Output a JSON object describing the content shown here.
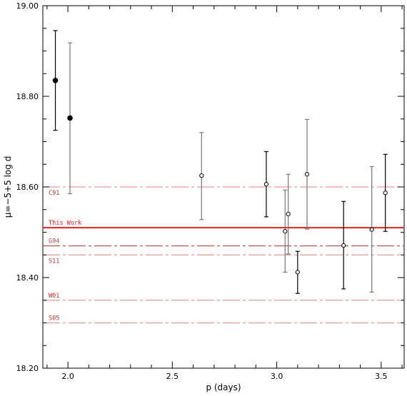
{
  "chart_data": {
    "type": "scatter",
    "xlabel": "p (days)",
    "ylabel": "μ=−5+5 log d",
    "xlim": [
      1.88,
      3.61
    ],
    "ylim": [
      18.2,
      19.0
    ],
    "x_ticks": [
      2.0,
      2.5,
      3.0,
      3.5
    ],
    "x_tick_labels": [
      "2.0",
      "2.5",
      "3.0",
      "3.5"
    ],
    "y_ticks": [
      18.2,
      18.4,
      18.6,
      18.8,
      19.0
    ],
    "y_tick_labels": [
      "18.20",
      "18.40",
      "18.60",
      "18.80",
      "19.00"
    ],
    "grid": false,
    "points": [
      {
        "x": 1.94,
        "y": 18.835,
        "yerr_low": 18.725,
        "yerr_high": 18.945,
        "filled": true,
        "bar_color": "#000000"
      },
      {
        "x": 2.01,
        "y": 18.752,
        "yerr_low": 18.585,
        "yerr_high": 18.918,
        "filled": true,
        "bar_color": "#777777"
      },
      {
        "x": 2.64,
        "y": 18.625,
        "yerr_low": 18.528,
        "yerr_high": 18.72,
        "filled": false,
        "bar_color": "#777777"
      },
      {
        "x": 2.95,
        "y": 18.606,
        "yerr_low": 18.534,
        "yerr_high": 18.678,
        "filled": false,
        "bar_color": "#000000"
      },
      {
        "x": 3.04,
        "y": 18.502,
        "yerr_low": 18.412,
        "yerr_high": 18.593,
        "filled": false,
        "bar_color": "#777777"
      },
      {
        "x": 3.055,
        "y": 18.54,
        "yerr_low": 18.452,
        "yerr_high": 18.628,
        "filled": false,
        "bar_color": "#777777"
      },
      {
        "x": 3.1,
        "y": 18.412,
        "yerr_low": 18.365,
        "yerr_high": 18.458,
        "filled": false,
        "bar_color": "#000000"
      },
      {
        "x": 3.145,
        "y": 18.628,
        "yerr_low": 18.507,
        "yerr_high": 18.749,
        "filled": false,
        "bar_color": "#777777"
      },
      {
        "x": 3.32,
        "y": 18.471,
        "yerr_low": 18.375,
        "yerr_high": 18.568,
        "filled": false,
        "bar_color": "#000000"
      },
      {
        "x": 3.455,
        "y": 18.506,
        "yerr_low": 18.368,
        "yerr_high": 18.645,
        "filled": false,
        "bar_color": "#777777"
      },
      {
        "x": 3.52,
        "y": 18.587,
        "yerr_low": 18.502,
        "yerr_high": 18.672,
        "filled": false,
        "bar_color": "#000000"
      }
    ],
    "reference_lines": [
      {
        "label": "C91",
        "y": 18.6,
        "color": "#e49a9a",
        "style": "dashdot"
      },
      {
        "label": "This Work",
        "y": 18.51,
        "color": "#dd2222",
        "style": "solid"
      },
      {
        "label": "G94",
        "y": 18.47,
        "color": "#b04848",
        "style": "dashdot"
      },
      {
        "label": "S11",
        "y": 18.45,
        "color": "#e49a9a",
        "style": "dashdot"
      },
      {
        "label": "W01",
        "y": 18.35,
        "color": "#e49a9a",
        "style": "dashdot"
      },
      {
        "label": "S05",
        "y": 18.3,
        "color": "#e49a9a",
        "style": "dashdot"
      }
    ]
  }
}
